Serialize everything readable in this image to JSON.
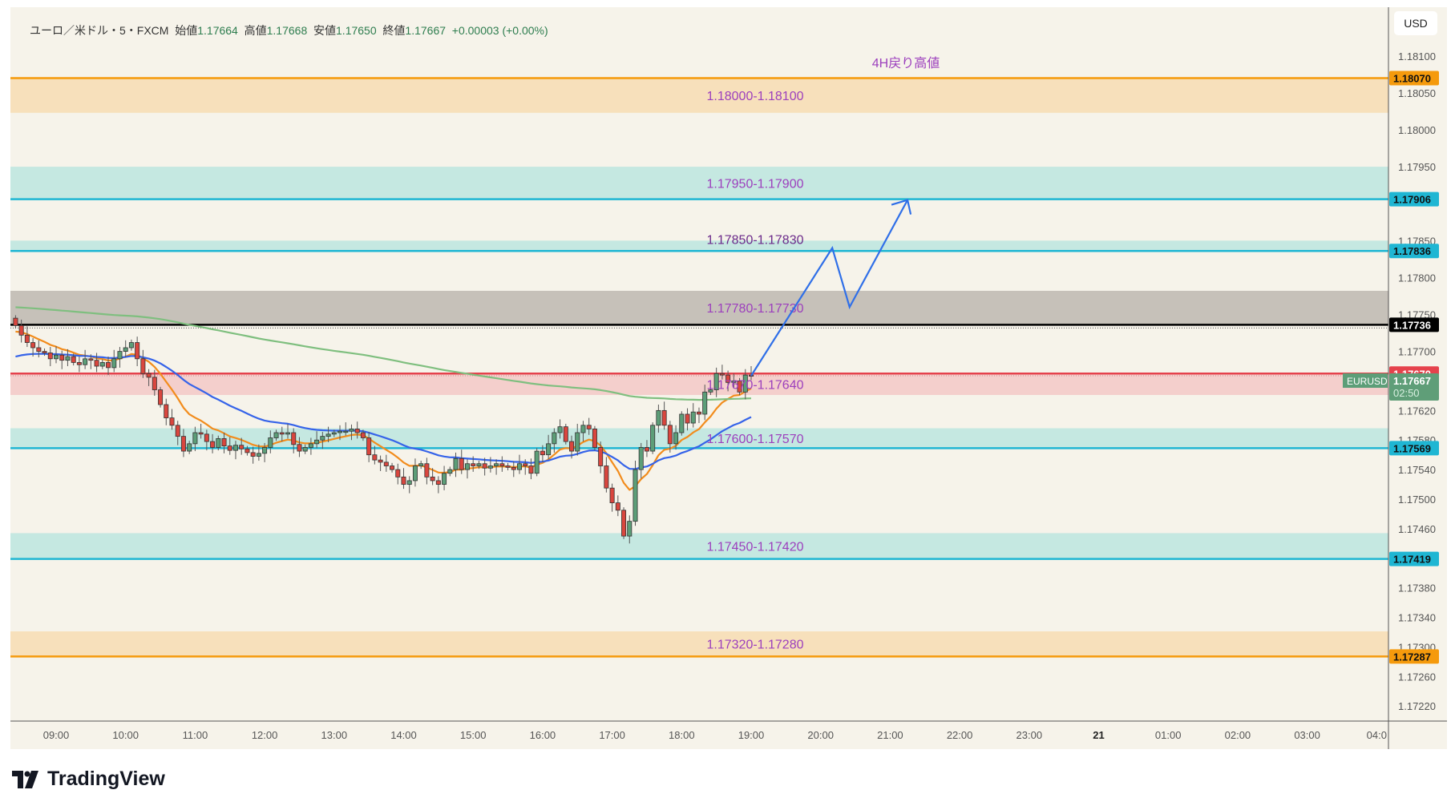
{
  "legend": {
    "symbol": "ユーロ／米ドル・5・FXCM",
    "open_label": "始値",
    "open": "1.17664",
    "high_label": "高値",
    "high": "1.17668",
    "low_label": "安値",
    "low": "1.17650",
    "close_label": "終値",
    "close": "1.17667",
    "change": "+0.00003 (+0.00%)"
  },
  "currency_button": "USD",
  "brand": "TradingView",
  "annotation": "4H戻り高値",
  "colors": {
    "background": "#f6f3ea",
    "up": "#5c9e78",
    "down": "#d9463e",
    "ma_fast": "#f28c1c",
    "ma_mid": "#3563e9",
    "ma_slow": "#7fbf7f",
    "label": "#9c3fbd",
    "arrow": "#2f6fe8"
  },
  "chart_data": {
    "type": "candlestick",
    "symbol": "EURUSD",
    "interval_minutes": 5,
    "ylim": [
      1.17195,
      1.1818
    ],
    "price_ticks": [
      "1.18100",
      "1.18050",
      "1.18000",
      "1.17950",
      "1.17850",
      "1.17800",
      "1.17750",
      "1.17700",
      "1.17620",
      "1.17580",
      "1.17540",
      "1.17500",
      "1.17460",
      "1.17380",
      "1.17340",
      "1.17300",
      "1.17260",
      "1.17220"
    ],
    "time_ticks": [
      "09:00",
      "10:00",
      "11:00",
      "12:00",
      "13:00",
      "14:00",
      "15:00",
      "16:00",
      "17:00",
      "18:00",
      "19:00",
      "20:00",
      "21:00",
      "22:00",
      "23:00",
      "21",
      "01:00",
      "02:00",
      "03:00",
      "04:0"
    ],
    "first_bar_offset_before_0900": 7,
    "closes": [
      1.17735,
      1.17722,
      1.17712,
      1.17705,
      1.177,
      1.17698,
      1.1769,
      1.17695,
      1.17688,
      1.17693,
      1.17685,
      1.17682,
      1.1769,
      1.17688,
      1.1768,
      1.17685,
      1.17678,
      1.1769,
      1.177,
      1.17705,
      1.17712,
      1.1769,
      1.1767,
      1.17665,
      1.17648,
      1.17628,
      1.1761,
      1.176,
      1.17585,
      1.17565,
      1.17575,
      1.1759,
      1.17588,
      1.17578,
      1.1757,
      1.17582,
      1.17572,
      1.17566,
      1.17573,
      1.17568,
      1.17563,
      1.17558,
      1.17562,
      1.1757,
      1.17583,
      1.1759,
      1.17588,
      1.1759,
      1.17574,
      1.17565,
      1.1757,
      1.17575,
      1.1758,
      1.17585,
      1.17588,
      1.1759,
      1.17592,
      1.17592,
      1.17595,
      1.1759,
      1.17583,
      1.1756,
      1.17553,
      1.1755,
      1.17545,
      1.1754,
      1.1753,
      1.1752,
      1.17525,
      1.17545,
      1.17548,
      1.1753,
      1.17525,
      1.1752,
      1.17535,
      1.1754,
      1.17555,
      1.1754,
      1.17548,
      1.17545,
      1.17548,
      1.17542,
      1.17545,
      1.17548,
      1.17545,
      1.17543,
      1.1754,
      1.17548,
      1.17545,
      1.17535,
      1.17565,
      1.1756,
      1.17575,
      1.1759,
      1.17598,
      1.17578,
      1.17565,
      1.1759,
      1.176,
      1.17595,
      1.1757,
      1.17545,
      1.17515,
      1.17495,
      1.17485,
      1.1745,
      1.1747,
      1.1754,
      1.1757,
      1.17565,
      1.176,
      1.1762,
      1.176,
      1.17575,
      1.1759,
      1.17615,
      1.17603,
      1.17618,
      1.17615,
      1.17645,
      1.17648,
      1.1767,
      1.17668,
      1.17658,
      1.1766,
      1.17645,
      1.17668,
      1.17667
    ],
    "first_open": 1.17745,
    "moving_averages": [
      {
        "name": "ma-fast",
        "period": 10,
        "seed": 1.17725
      },
      {
        "name": "ma-mid",
        "period": 30,
        "seed": 1.1769
      },
      {
        "name": "ma-slow",
        "period": 200,
        "seed": 1.1776
      }
    ],
    "zones": [
      {
        "label": "1.18000-1.18100",
        "top": 1.1807,
        "bottom": 1.18023,
        "line": 1.1807,
        "fill": "#f7e0bb",
        "line_color": "#f59a0c",
        "tag": "1.18070",
        "tag_bg": "#f59a0c",
        "tag_fg": "#111"
      },
      {
        "label": "1.17950-1.17900",
        "top": 1.1795,
        "bottom": 1.17906,
        "line": 1.17906,
        "fill": "#c5e8e1",
        "line_color": "#1fb6d3",
        "tag": "1.17906",
        "tag_bg": "#1fb6d3",
        "tag_fg": "#111"
      },
      {
        "label": "1.17850-1.17830",
        "top": 1.1785,
        "bottom": 1.17837,
        "line": 1.17836,
        "fill": "#c5e8e1",
        "line_color": "#1fb6d3",
        "tag": "1.17836",
        "tag_bg": "#1fb6d3",
        "tag_fg": "#111"
      },
      {
        "label": "1.17780-1.17730",
        "top": 1.17782,
        "bottom": 1.17736,
        "line": 1.17736,
        "fill": "#c6c1b9",
        "line_color": "#000000",
        "tag": "1.17736",
        "tag_bg": "#000000",
        "tag_fg": "#fff"
      },
      {
        "label": "1.17670-1.17640",
        "top": 1.1767,
        "bottom": 1.17641,
        "line": 1.1767,
        "fill": "#f4cfcc",
        "line_color": "#e5424c",
        "tag": "1.17670",
        "tag_bg": "#e5424c",
        "tag_fg": "#fff"
      },
      {
        "label": "1.17600-1.17570",
        "top": 1.17596,
        "bottom": 1.17569,
        "line": 1.17569,
        "fill": "#c5e8e1",
        "line_color": "#1fb6d3",
        "tag": "1.17569",
        "tag_bg": "#1fb6d3",
        "tag_fg": "#111"
      },
      {
        "label": "1.17450-1.17420",
        "top": 1.17454,
        "bottom": 1.17419,
        "line": 1.17419,
        "fill": "#c5e8e1",
        "line_color": "#1fb6d3",
        "tag": "1.17419",
        "tag_bg": "#1fb6d3",
        "tag_fg": "#111"
      },
      {
        "label": "1.17320-1.17280",
        "top": 1.17321,
        "bottom": 1.17287,
        "line": 1.17287,
        "fill": "#f7e0bb",
        "line_color": "#f59a0c",
        "tag": "1.17287",
        "tag_bg": "#f59a0c",
        "tag_fg": "#111"
      }
    ],
    "current_price": {
      "symbol_tag": "EURUSD",
      "price": "1.17667",
      "countdown": "02:50",
      "value": 1.17667
    },
    "projection_path": [
      [
        1.17667,
        0
      ],
      [
        1.1784,
        14
      ],
      [
        1.1776,
        17
      ],
      [
        1.17905,
        27
      ]
    ]
  }
}
